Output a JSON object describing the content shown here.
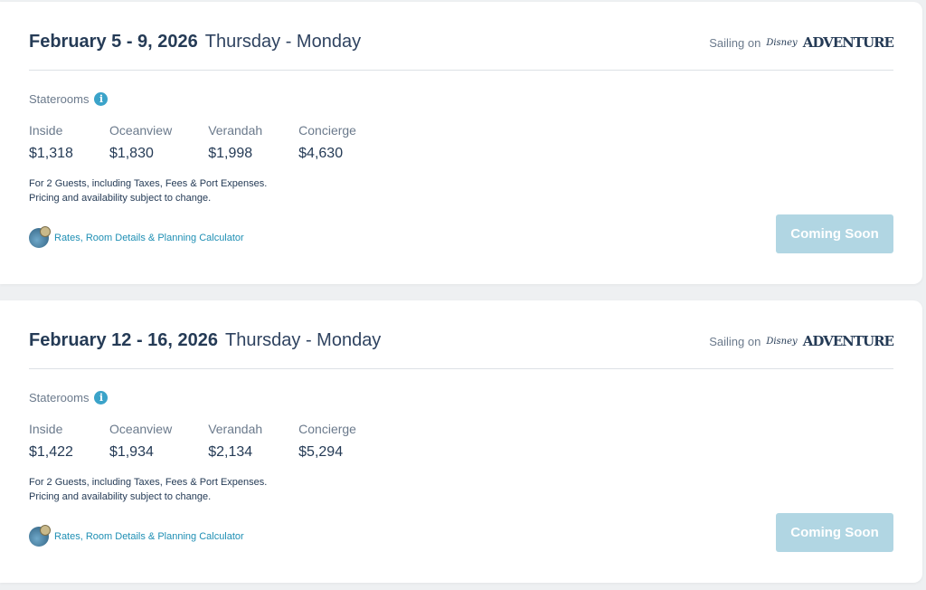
{
  "sailings": [
    {
      "dates": "February 5 - 9, 2026",
      "days": "Thursday - Monday",
      "sailing_on": "Sailing on",
      "ship_logo": "Disney Adventure",
      "staterooms_label": "Staterooms",
      "rooms": [
        {
          "label": "Inside",
          "price": "$1,318"
        },
        {
          "label": "Oceanview",
          "price": "$1,830"
        },
        {
          "label": "Verandah",
          "price": "$1,998"
        },
        {
          "label": "Concierge",
          "price": "$4,630"
        }
      ],
      "note1": "For 2 Guests, including Taxes, Fees & Port Expenses.",
      "note2": "Pricing and availability subject to change.",
      "link": "Rates, Room Details & Planning Calculator",
      "button": "Coming Soon"
    },
    {
      "dates": "February 12 - 16, 2026",
      "days": "Thursday - Monday",
      "sailing_on": "Sailing on",
      "ship_logo": "Disney Adventure",
      "staterooms_label": "Staterooms",
      "rooms": [
        {
          "label": "Inside",
          "price": "$1,422"
        },
        {
          "label": "Oceanview",
          "price": "$1,934"
        },
        {
          "label": "Verandah",
          "price": "$2,134"
        },
        {
          "label": "Concierge",
          "price": "$5,294"
        }
      ],
      "note1": "For 2 Guests, including Taxes, Fees & Port Expenses.",
      "note2": "Pricing and availability subject to change.",
      "link": "Rates, Room Details & Planning Calculator",
      "button": "Coming Soon"
    }
  ],
  "colors": {
    "accent": "#1f8fb4",
    "button_disabled": "#b1d6e3",
    "text": "#253b56"
  }
}
